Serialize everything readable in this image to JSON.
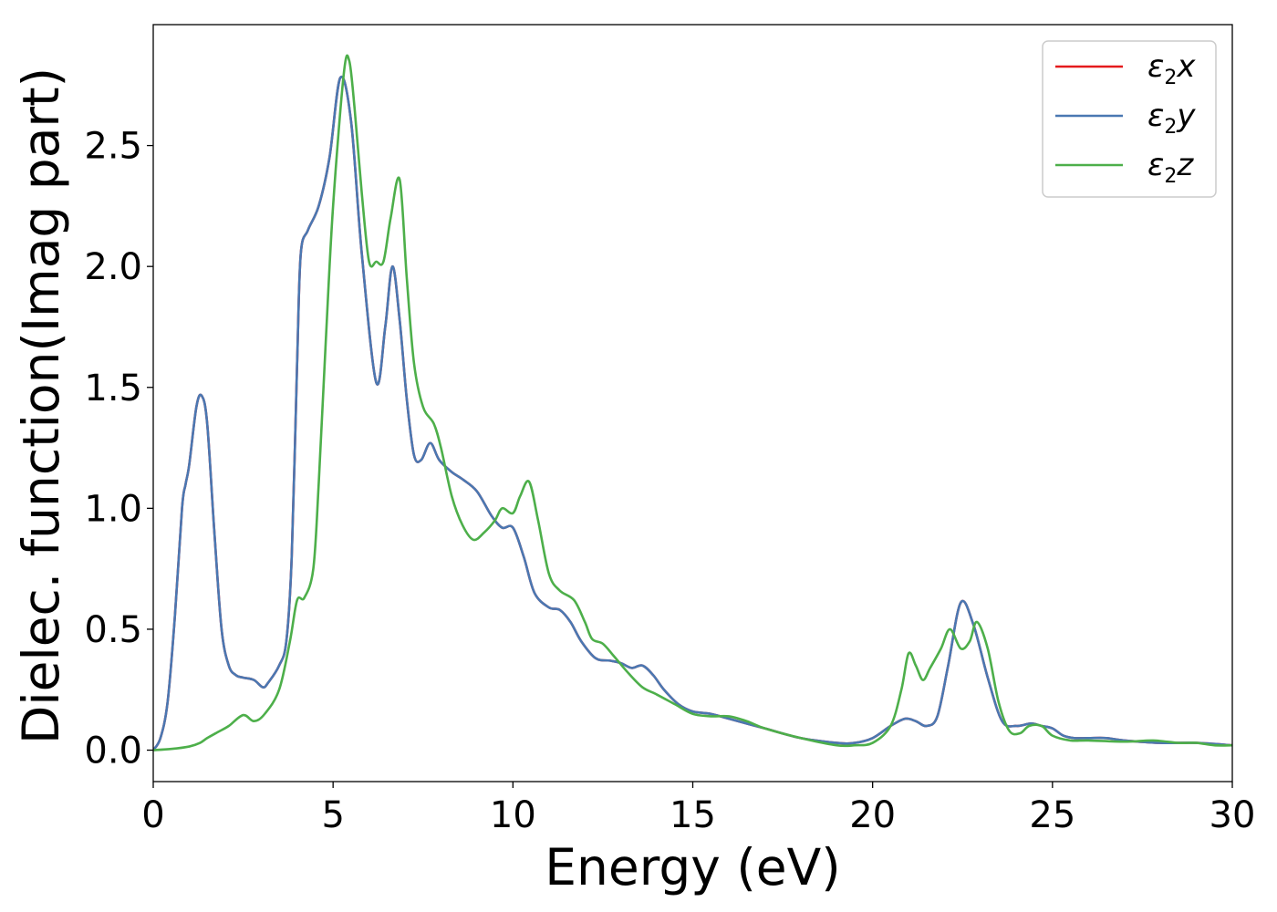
{
  "chart_data": {
    "type": "line",
    "title": "",
    "xlabel": "Energy (eV)",
    "ylabel": "Dielec. function(Imag part)",
    "xlim": [
      0,
      30
    ],
    "ylim": [
      -0.13,
      3.0
    ],
    "xticks": [
      0,
      5,
      10,
      15,
      20,
      25,
      30
    ],
    "xtick_labels": [
      "0",
      "5",
      "10",
      "15",
      "20",
      "25",
      "30"
    ],
    "yticks": [
      0.0,
      0.5,
      1.0,
      1.5,
      2.0,
      2.5
    ],
    "ytick_labels": [
      "0.0",
      "0.5",
      "1.0",
      "1.5",
      "2.0",
      "2.5"
    ],
    "grid": false,
    "legend_position": "top-right",
    "series": [
      {
        "name": "ε2x",
        "legend_base": "ε",
        "legend_sub": "2",
        "legend_suffix": "x",
        "color": "#e41a1c",
        "x": [
          0,
          0.2,
          0.4,
          0.6,
          0.8,
          0.9,
          1.0,
          1.2,
          1.35,
          1.5,
          1.7,
          1.9,
          2.1,
          2.3,
          2.5,
          2.8,
          3.05,
          3.2,
          3.5,
          3.7,
          3.85,
          4.0,
          4.1,
          4.3,
          4.6,
          4.9,
          5.2,
          5.5,
          5.8,
          6.2,
          6.45,
          6.65,
          6.85,
          7.05,
          7.25,
          7.45,
          7.7,
          7.95,
          8.3,
          8.6,
          9.0,
          9.4,
          9.7,
          10.0,
          10.3,
          10.6,
          11.0,
          11.3,
          11.6,
          11.9,
          12.3,
          12.7,
          13.0,
          13.3,
          13.6,
          13.9,
          14.2,
          14.6,
          15.0,
          15.5,
          16.0,
          17.0,
          18.0,
          19.0,
          19.5,
          20.0,
          20.5,
          20.9,
          21.2,
          21.5,
          21.8,
          22.1,
          22.45,
          22.8,
          23.2,
          23.6,
          24.0,
          24.4,
          24.7,
          25.0,
          25.3,
          25.6,
          26.0,
          26.5,
          27.0,
          28.0,
          29.0,
          30.0
        ],
        "values": [
          0.0,
          0.05,
          0.2,
          0.55,
          1.0,
          1.1,
          1.18,
          1.42,
          1.465,
          1.35,
          0.9,
          0.5,
          0.35,
          0.31,
          0.3,
          0.29,
          0.26,
          0.28,
          0.35,
          0.45,
          0.8,
          1.6,
          2.05,
          2.15,
          2.25,
          2.45,
          2.78,
          2.6,
          2.05,
          1.52,
          1.75,
          2.0,
          1.78,
          1.45,
          1.22,
          1.2,
          1.27,
          1.2,
          1.15,
          1.12,
          1.07,
          0.97,
          0.92,
          0.92,
          0.8,
          0.65,
          0.59,
          0.58,
          0.53,
          0.45,
          0.38,
          0.37,
          0.36,
          0.34,
          0.35,
          0.31,
          0.25,
          0.19,
          0.16,
          0.15,
          0.13,
          0.09,
          0.05,
          0.03,
          0.03,
          0.05,
          0.1,
          0.13,
          0.12,
          0.1,
          0.14,
          0.35,
          0.61,
          0.52,
          0.3,
          0.12,
          0.1,
          0.11,
          0.1,
          0.09,
          0.06,
          0.05,
          0.05,
          0.05,
          0.04,
          0.03,
          0.03,
          0.02
        ]
      },
      {
        "name": "ε2y",
        "legend_base": "ε",
        "legend_sub": "2",
        "legend_suffix": "y",
        "color": "#4a78b2",
        "x": [
          0,
          0.2,
          0.4,
          0.6,
          0.8,
          0.9,
          1.0,
          1.2,
          1.35,
          1.5,
          1.7,
          1.9,
          2.1,
          2.3,
          2.5,
          2.8,
          3.05,
          3.2,
          3.5,
          3.7,
          3.85,
          4.0,
          4.1,
          4.3,
          4.6,
          4.9,
          5.2,
          5.5,
          5.8,
          6.2,
          6.45,
          6.65,
          6.85,
          7.05,
          7.25,
          7.45,
          7.7,
          7.95,
          8.3,
          8.6,
          9.0,
          9.4,
          9.7,
          10.0,
          10.3,
          10.6,
          11.0,
          11.3,
          11.6,
          11.9,
          12.3,
          12.7,
          13.0,
          13.3,
          13.6,
          13.9,
          14.2,
          14.6,
          15.0,
          15.5,
          16.0,
          17.0,
          18.0,
          19.0,
          19.5,
          20.0,
          20.5,
          20.9,
          21.2,
          21.5,
          21.8,
          22.1,
          22.45,
          22.8,
          23.2,
          23.6,
          24.0,
          24.4,
          24.7,
          25.0,
          25.3,
          25.6,
          26.0,
          26.5,
          27.0,
          28.0,
          29.0,
          30.0
        ],
        "values": [
          0.0,
          0.05,
          0.2,
          0.55,
          1.0,
          1.1,
          1.18,
          1.42,
          1.465,
          1.35,
          0.9,
          0.5,
          0.35,
          0.31,
          0.3,
          0.29,
          0.26,
          0.28,
          0.35,
          0.45,
          0.8,
          1.6,
          2.05,
          2.15,
          2.25,
          2.45,
          2.78,
          2.6,
          2.05,
          1.52,
          1.75,
          2.0,
          1.78,
          1.45,
          1.22,
          1.2,
          1.27,
          1.2,
          1.15,
          1.12,
          1.07,
          0.97,
          0.92,
          0.92,
          0.8,
          0.65,
          0.59,
          0.58,
          0.53,
          0.45,
          0.38,
          0.37,
          0.36,
          0.34,
          0.35,
          0.31,
          0.25,
          0.19,
          0.16,
          0.15,
          0.13,
          0.09,
          0.05,
          0.03,
          0.03,
          0.05,
          0.1,
          0.13,
          0.12,
          0.1,
          0.14,
          0.35,
          0.61,
          0.52,
          0.3,
          0.12,
          0.1,
          0.11,
          0.1,
          0.09,
          0.06,
          0.05,
          0.05,
          0.05,
          0.04,
          0.03,
          0.03,
          0.02
        ]
      },
      {
        "name": "ε2z",
        "legend_base": "ε",
        "legend_sub": "2",
        "legend_suffix": "z",
        "color": "#4daf4a",
        "x": [
          0,
          0.5,
          1.0,
          1.3,
          1.5,
          1.8,
          2.1,
          2.5,
          2.8,
          3.1,
          3.5,
          3.8,
          4.0,
          4.2,
          4.45,
          4.6,
          4.8,
          5.0,
          5.3,
          5.45,
          5.6,
          5.8,
          6.0,
          6.2,
          6.4,
          6.6,
          6.85,
          7.05,
          7.25,
          7.5,
          7.8,
          8.0,
          8.3,
          8.6,
          8.9,
          9.2,
          9.5,
          9.7,
          10.0,
          10.2,
          10.45,
          10.7,
          11.0,
          11.3,
          11.7,
          12.0,
          12.2,
          12.5,
          12.8,
          13.2,
          13.6,
          14.0,
          14.5,
          15.0,
          15.5,
          16.0,
          16.5,
          17.0,
          18.0,
          19.0,
          19.5,
          20.0,
          20.5,
          20.8,
          21.0,
          21.2,
          21.4,
          21.6,
          21.9,
          22.15,
          22.45,
          22.7,
          22.9,
          23.2,
          23.5,
          23.8,
          24.1,
          24.35,
          24.7,
          25.0,
          25.5,
          26.0,
          27.0,
          27.8,
          28.5,
          29.0,
          29.5,
          30.0
        ],
        "values": [
          0.0,
          0.005,
          0.015,
          0.03,
          0.05,
          0.075,
          0.1,
          0.145,
          0.12,
          0.15,
          0.25,
          0.45,
          0.62,
          0.63,
          0.75,
          1.1,
          1.7,
          2.25,
          2.8,
          2.85,
          2.65,
          2.3,
          2.02,
          2.02,
          2.02,
          2.2,
          2.36,
          1.95,
          1.6,
          1.42,
          1.35,
          1.25,
          1.05,
          0.93,
          0.87,
          0.9,
          0.95,
          1.0,
          0.98,
          1.05,
          1.11,
          0.95,
          0.73,
          0.66,
          0.62,
          0.53,
          0.46,
          0.44,
          0.39,
          0.32,
          0.26,
          0.23,
          0.19,
          0.15,
          0.14,
          0.14,
          0.12,
          0.09,
          0.05,
          0.02,
          0.02,
          0.03,
          0.1,
          0.25,
          0.4,
          0.35,
          0.29,
          0.34,
          0.42,
          0.5,
          0.42,
          0.45,
          0.53,
          0.42,
          0.2,
          0.08,
          0.07,
          0.1,
          0.1,
          0.06,
          0.04,
          0.04,
          0.035,
          0.04,
          0.03,
          0.03,
          0.02,
          0.02
        ]
      }
    ]
  }
}
